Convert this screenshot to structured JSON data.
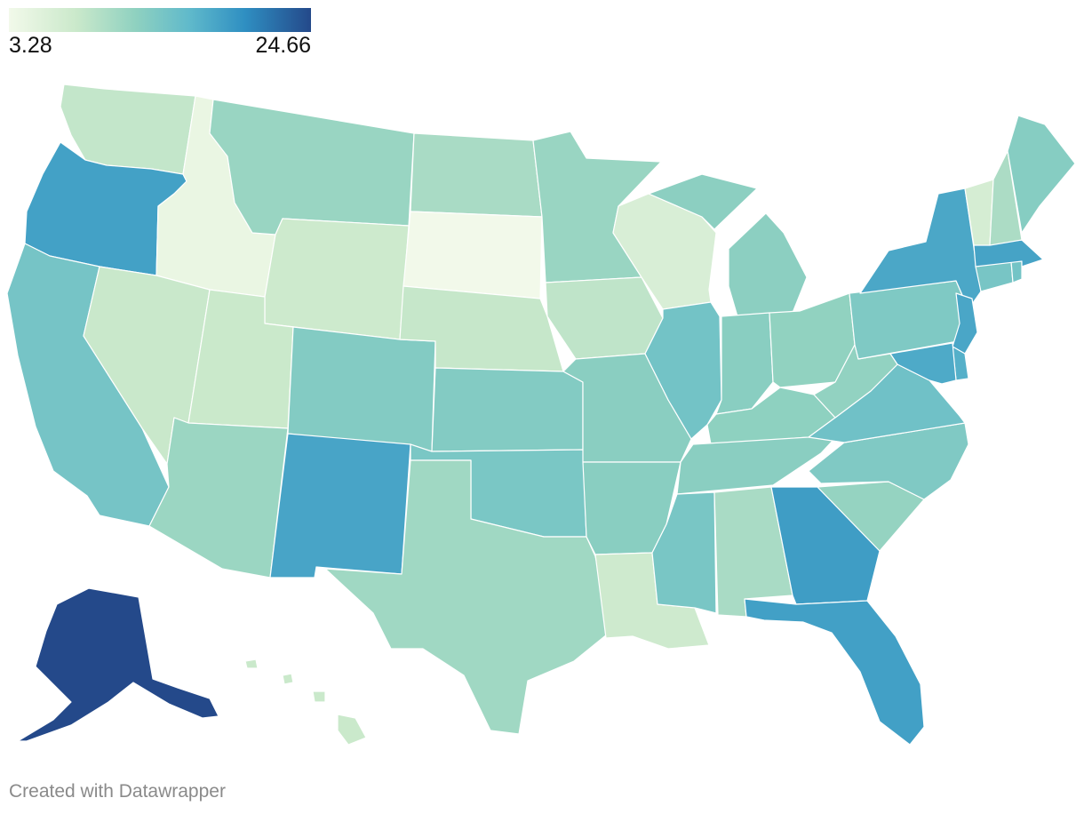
{
  "legend": {
    "min_label": "3.28",
    "max_label": "24.66",
    "min_value": 3.28,
    "max_value": 24.66,
    "color_scale": [
      "#f2f9ea",
      "#cbe9cb",
      "#8fd1c0",
      "#5fb9cb",
      "#2f8fc2",
      "#24498a"
    ]
  },
  "credit": "Created with Datawrapper",
  "states": {
    "AK": 24.66,
    "OR": 18.6,
    "NM": 18.2,
    "GA": 19.0,
    "FL": 18.7,
    "NY": 17.9,
    "MA": 18.3,
    "NJ": 18.0,
    "MD": 17.6,
    "DE": 17.0,
    "CA": 14.1,
    "IL": 14.3,
    "MS": 13.8,
    "OK": 13.7,
    "KS": 12.9,
    "CO": 12.9,
    "PA": 13.3,
    "VA": 14.6,
    "NC": 13.2,
    "CT": 13.9,
    "RI": 14.2,
    "ME": 12.6,
    "MI": 12.1,
    "IN": 12.4,
    "MO": 12.3,
    "AR": 12.4,
    "TN": 12.3,
    "KY": 11.9,
    "OH": 11.7,
    "WV": 11.6,
    "SC": 11.4,
    "MN": 11.1,
    "MT": 11.1,
    "AZ": 11.0,
    "TX": 10.6,
    "ND": 10.0,
    "AL": 10.0,
    "NH": 9.8,
    "IA": 8.4,
    "WA": 8.1,
    "NE": 7.9,
    "UT": 7.6,
    "NV": 7.7,
    "WY": 7.3,
    "LA": 7.2,
    "HI": 7.6,
    "WI": 6.1,
    "VT": 6.5,
    "ID": 4.2,
    "SD": 3.28
  }
}
